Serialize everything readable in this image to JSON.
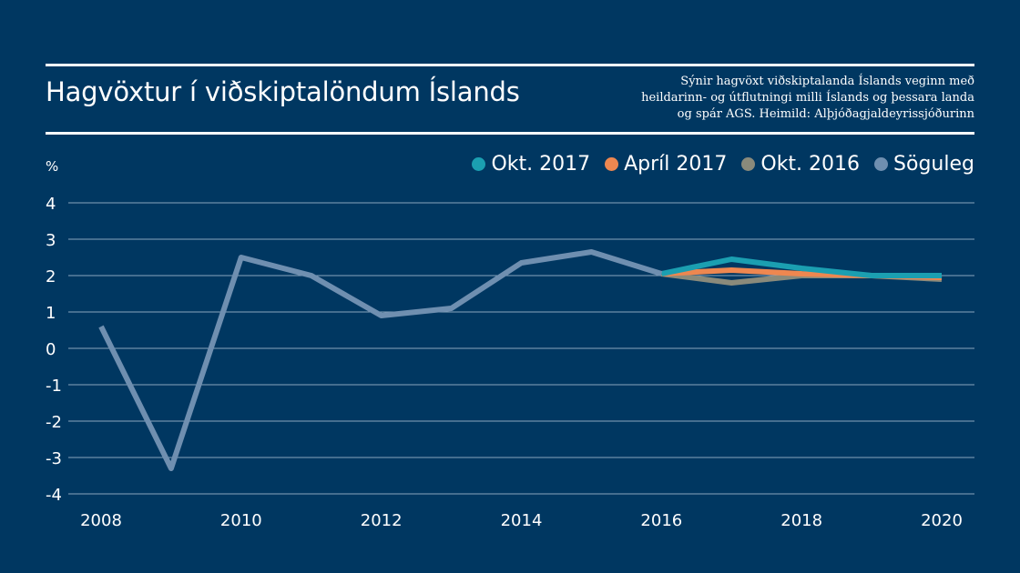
{
  "header": {
    "title": "Hagvöxtur í viðskiptalöndum Íslands",
    "subtitle_lines": [
      "Sýnir hagvöxt viðskiptalanda Íslands veginn með",
      "heildarinn- og útflutningi milli Íslands og þessara landa",
      "og spár AGS. Heimild: Alþjóðagjaldeyrissjóðurinn"
    ]
  },
  "chart_data": {
    "type": "line",
    "ylabel": "%",
    "xlabel": "",
    "xlim": [
      2008,
      2020
    ],
    "ylim": [
      -4,
      4
    ],
    "x_ticks": [
      "2008",
      "2010",
      "2012",
      "2014",
      "2016",
      "2018",
      "2020"
    ],
    "y_ticks": [
      "4",
      "3",
      "2",
      "1",
      "0",
      "-1",
      "-2",
      "-3",
      "-4"
    ],
    "grid": true,
    "legend_position": "top-right",
    "series": [
      {
        "name": "Okt. 2017",
        "color": "#1b9fb1",
        "points": [
          [
            2016,
            2.05
          ],
          [
            2017,
            2.45
          ],
          [
            2018,
            2.2
          ],
          [
            2019,
            2.0
          ],
          [
            2020,
            2.0
          ]
        ]
      },
      {
        "name": "Apríl 2017",
        "color": "#ee8750",
        "points": [
          [
            2016,
            2.05
          ],
          [
            2017,
            2.15
          ],
          [
            2018,
            2.05
          ],
          [
            2019,
            2.0
          ],
          [
            2020,
            1.95
          ]
        ]
      },
      {
        "name": "Okt. 2016",
        "color": "#8a8a7b",
        "points": [
          [
            2016,
            2.05
          ],
          [
            2017,
            1.8
          ],
          [
            2018,
            2.0
          ],
          [
            2019,
            2.0
          ],
          [
            2020,
            1.9
          ]
        ]
      },
      {
        "name": "Söguleg",
        "color": "#6f8fb0",
        "points": [
          [
            2008,
            0.6
          ],
          [
            2009,
            -3.3
          ],
          [
            2010,
            2.5
          ],
          [
            2011,
            2.0
          ],
          [
            2012,
            0.9
          ],
          [
            2013,
            1.1
          ],
          [
            2014,
            2.35
          ],
          [
            2015,
            2.65
          ],
          [
            2016,
            2.05
          ]
        ]
      }
    ]
  }
}
